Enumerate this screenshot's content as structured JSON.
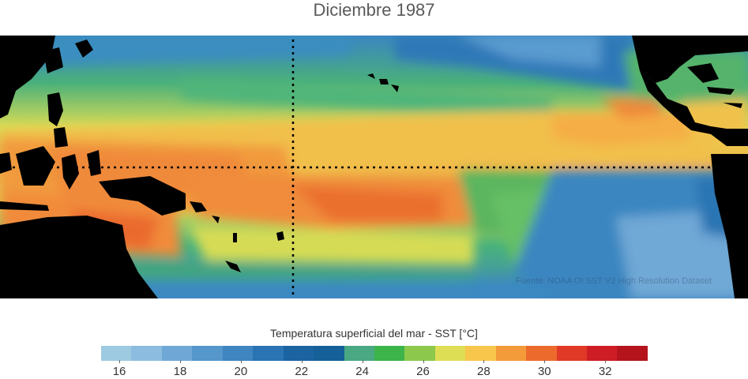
{
  "title": "Diciembre 1987",
  "source": "Fuente: NOAA OI SST V2 High Resolution Dataset",
  "colorbar": {
    "label": "Temperatura superficial del mar - SST  [°C]",
    "ticks": [
      "16",
      "18",
      "20",
      "22",
      "24",
      "26",
      "28",
      "30",
      "32"
    ],
    "colors": [
      "#9ecae1",
      "#8cbde0",
      "#6fa8d6",
      "#5596cb",
      "#3f85c0",
      "#2a74b3",
      "#1c63a2",
      "#156098",
      "#4aa882",
      "#3cb44a",
      "#8cc84b",
      "#dede55",
      "#f7c64a",
      "#f39a3a",
      "#ec6a2c",
      "#e03a26",
      "#cf1d25",
      "#b5141d"
    ]
  },
  "map": {
    "land_color": "#000000",
    "region": "Pacífico tropical",
    "equator_line": true,
    "dateline_line": true
  }
}
